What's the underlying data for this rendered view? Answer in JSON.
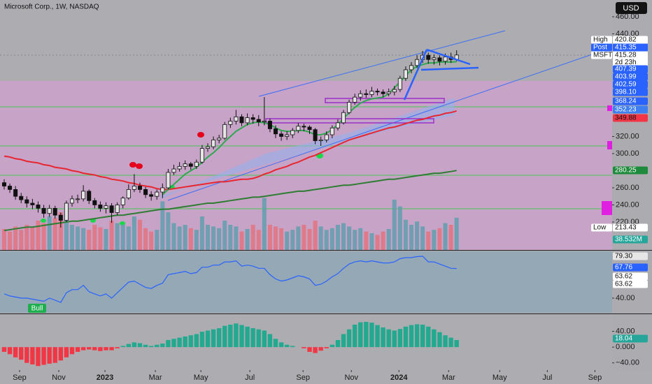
{
  "header": {
    "title": "Microsoft Corp., 1W, NASDAQ",
    "currency": "USD"
  },
  "chart_data": [
    {
      "type": "candlestick",
      "xlim": [
        -0.74,
        107.5
      ],
      "xticks": [
        {
          "value": 2.72,
          "label": "Sep"
        },
        {
          "value": 9.65,
          "label": "Nov"
        },
        {
          "value": 17.82,
          "label": "2023"
        },
        {
          "value": 26.73,
          "label": "Mar"
        },
        {
          "value": 34.78,
          "label": "May"
        },
        {
          "value": 43.44,
          "label": "Jul"
        },
        {
          "value": 52.85,
          "label": "Sep"
        },
        {
          "value": 61.39,
          "label": "Nov"
        },
        {
          "value": 69.8,
          "label": "2024"
        },
        {
          "value": 78.59,
          "label": "Mar"
        },
        {
          "value": 87.62,
          "label": "May"
        },
        {
          "value": 96.04,
          "label": "Jul"
        },
        {
          "value": 104.46,
          "label": "Sep"
        }
      ],
      "ylim": [
        187.3,
        479.6
      ],
      "yticks": [
        {
          "value": 460,
          "label": "460.00"
        },
        {
          "value": 440,
          "label": "440.00"
        },
        {
          "value": 320,
          "label": "320.00"
        },
        {
          "value": 300,
          "label": "300.00"
        },
        {
          "value": 260,
          "label": "260.00"
        },
        {
          "value": 240,
          "label": "240.00"
        },
        {
          "value": 220,
          "label": "220.00"
        }
      ],
      "up_color": "#e6e6e6",
      "down_color": "#111111",
      "open": [
        266,
        262,
        258,
        250,
        246,
        242,
        240,
        236,
        230,
        236,
        228,
        222,
        242,
        247,
        247,
        256,
        245,
        240,
        236,
        239,
        231,
        240,
        248,
        258,
        262,
        258,
        252,
        250,
        255,
        260,
        278,
        282,
        285,
        288,
        285,
        290,
        306,
        308,
        316,
        318,
        334,
        338,
        343,
        336,
        342,
        340,
        337,
        338,
        329,
        323,
        320,
        322,
        327,
        332,
        331,
        328,
        315,
        316,
        322,
        330,
        336,
        348,
        360,
        366,
        370,
        369,
        373,
        372,
        370,
        372,
        375,
        388,
        398,
        403,
        410,
        415,
        410,
        412,
        408,
        413,
        410
      ],
      "high": [
        270,
        265,
        262,
        254,
        250,
        247,
        244,
        240,
        240,
        239,
        231,
        245,
        251,
        252,
        263,
        258,
        248,
        244,
        243,
        242,
        243,
        250,
        264,
        276,
        266,
        261,
        256,
        258,
        265,
        282,
        287,
        290,
        292,
        290,
        293,
        310,
        312,
        320,
        322,
        337,
        342,
        351,
        346,
        347,
        346,
        345,
        366,
        341,
        333,
        326,
        326,
        330,
        336,
        335,
        333,
        330,
        320,
        326,
        333,
        340,
        351,
        363,
        370,
        374,
        375,
        378,
        376,
        375,
        376,
        379,
        391,
        402,
        407,
        415,
        420,
        418,
        416,
        415,
        417,
        418,
        420.82
      ],
      "low": [
        258,
        254,
        246,
        242,
        237,
        235,
        231,
        225,
        226,
        224,
        213.43,
        220,
        238,
        242,
        244,
        241,
        236,
        232,
        230,
        219,
        228,
        236,
        246,
        255,
        254,
        248,
        245,
        246,
        248,
        258,
        275,
        279,
        281,
        281,
        282,
        288,
        302,
        305,
        312,
        316,
        330,
        334,
        332,
        333,
        335,
        332,
        333,
        325,
        318,
        315,
        316,
        318,
        324,
        326,
        323,
        311,
        309,
        313,
        318,
        327,
        334,
        346,
        357,
        362,
        365,
        366,
        368,
        366,
        367,
        368,
        372,
        385,
        394,
        400,
        406,
        405,
        404,
        403,
        404,
        406,
        408
      ],
      "close": [
        262,
        258,
        250,
        246,
        242,
        240,
        236,
        230,
        236,
        228,
        222,
        242,
        247,
        247,
        256,
        245,
        240,
        236,
        239,
        231,
        240,
        248,
        258,
        262,
        258,
        252,
        250,
        255,
        260,
        278,
        282,
        285,
        288,
        285,
        290,
        306,
        308,
        316,
        318,
        334,
        338,
        343,
        336,
        342,
        340,
        337,
        338,
        329,
        323,
        320,
        322,
        327,
        332,
        331,
        328,
        315,
        316,
        322,
        330,
        336,
        348,
        360,
        366,
        370,
        369,
        373,
        372,
        370,
        372,
        375,
        388,
        398,
        403,
        410,
        415,
        410,
        412,
        408,
        413,
        410,
        415.28
      ],
      "lines": [
        {
          "color": "#e8262f",
          "values": [
            297,
            296,
            294,
            293,
            291,
            290,
            289,
            287,
            286,
            284,
            283,
            282,
            280,
            279,
            277,
            276,
            275,
            273,
            272,
            270,
            269,
            268,
            266,
            265,
            263,
            262,
            261,
            259,
            258,
            258,
            259,
            260,
            261,
            262,
            263,
            264,
            265,
            266,
            267,
            267,
            268,
            269,
            270,
            270,
            271,
            273,
            276,
            278,
            281,
            283,
            285,
            288,
            290,
            293,
            296,
            298,
            301,
            304,
            307,
            310,
            313,
            316,
            318,
            320,
            322,
            324,
            326,
            328,
            330,
            331,
            333,
            335,
            337,
            339,
            340,
            342,
            344,
            345,
            347,
            348,
            349.88
          ]
        },
        {
          "color": "#2e7d32",
          "values": [
            210,
            211,
            212,
            213,
            214,
            214,
            215,
            216,
            217,
            218,
            219,
            220,
            221,
            221,
            222,
            223,
            224,
            225,
            226,
            227,
            228,
            228,
            229,
            230,
            231,
            232,
            233,
            234,
            235,
            235,
            236,
            237,
            238,
            239,
            240,
            241,
            242,
            242,
            243,
            244,
            245,
            246,
            247,
            248,
            249,
            249,
            250,
            251,
            252,
            253,
            254,
            255,
            256,
            256,
            257,
            258,
            259,
            260,
            261,
            262,
            263,
            263,
            264,
            265,
            266,
            267,
            268,
            269,
            270,
            270,
            271,
            272,
            273,
            274,
            275,
            276,
            277,
            277,
            278,
            279,
            280.25
          ]
        },
        {
          "color": "#2fa84f",
          "values": [
            null,
            null,
            null,
            null,
            null,
            null,
            null,
            null,
            null,
            null,
            null,
            null,
            null,
            null,
            null,
            null,
            null,
            null,
            null,
            null,
            null,
            null,
            null,
            null,
            null,
            null,
            null,
            null,
            252,
            258,
            264,
            270,
            276,
            280,
            284,
            290,
            296,
            301,
            307,
            314,
            320,
            326,
            330,
            334,
            336,
            337,
            336,
            334,
            330,
            327,
            326,
            326,
            327,
            327,
            325,
            322,
            322,
            324,
            328,
            334,
            341,
            348,
            354,
            359,
            362,
            364,
            365,
            366,
            370,
            377,
            384,
            391,
            398,
            402,
            404,
            406,
            406,
            407,
            407,
            407,
            407.39
          ]
        }
      ],
      "volume": {
        "ylim": [
          0,
          100
        ],
        "up_color": "#5f9fab",
        "down_color": "#e2737e",
        "values": [
          25,
          22,
          28,
          24,
          30,
          27,
          35,
          32,
          40,
          38,
          45,
          42,
          30,
          28,
          26,
          24,
          30,
          27,
          25,
          35,
          32,
          30,
          28,
          40,
          36,
          26,
          22,
          24,
          58,
          45,
          32,
          28,
          30,
          26,
          24,
          40,
          30,
          28,
          26,
          35,
          30,
          28,
          22,
          25,
          30,
          24,
          62,
          30,
          28,
          26,
          22,
          24,
          28,
          30,
          25,
          35,
          28,
          24,
          26,
          30,
          32,
          28,
          24,
          26,
          22,
          20,
          18,
          22,
          25,
          60,
          52,
          36,
          30,
          34,
          28,
          22,
          24,
          26,
          32,
          30,
          38.532
        ]
      },
      "tags": [
        {
          "name": "High",
          "value": 420.82,
          "color": "#ffffff"
        },
        {
          "name": "Post",
          "value": 415.35,
          "color": "#2962ff"
        },
        {
          "name": "MSFT",
          "value": 415.28,
          "color": "#ffffff",
          "countdown": "2d 23h"
        },
        {
          "value": 407.39,
          "color": "#2962ff"
        },
        {
          "value": 403.99,
          "color": "#2962ff"
        },
        {
          "value": 402.59,
          "color": "#2962ff"
        },
        {
          "value": 398.1,
          "label": "398.10",
          "color": "#2962ff"
        },
        {
          "value": 368.24,
          "color": "#2962ff"
        },
        {
          "value": 352.23,
          "color": "#3d7ff0"
        },
        {
          "value": 349.88,
          "color": "#f23645"
        },
        {
          "value": 280.25,
          "color": "#1e8a3c"
        },
        {
          "name": "Low",
          "value": 213.43,
          "color": "#ffffff"
        },
        {
          "value": 38.532,
          "label": "38.532M",
          "color": "#26a69a"
        }
      ]
    },
    {
      "type": "line",
      "ylim": [
        24.9,
        83.9
      ],
      "yticks": [
        {
          "value": 40,
          "label": "40.00"
        }
      ],
      "color": "#2962ff",
      "annotation": "Bull",
      "values": [
        44,
        42,
        41,
        40,
        40,
        39,
        38,
        37,
        40,
        38,
        36,
        45,
        48,
        48,
        52,
        46,
        44,
        42,
        44,
        40,
        45,
        50,
        55,
        56,
        53,
        50,
        49,
        52,
        54,
        62,
        63,
        64,
        65,
        63,
        64,
        69,
        69,
        71,
        71,
        74,
        74,
        75,
        70,
        71,
        70,
        68,
        68,
        62,
        58,
        56,
        57,
        59,
        61,
        60,
        58,
        52,
        53,
        56,
        60,
        63,
        68,
        72,
        74,
        75,
        74,
        75,
        74,
        73,
        73,
        74,
        77,
        78,
        78,
        79,
        79.3,
        74,
        74,
        72,
        70,
        68,
        67.76
      ],
      "tags": [
        {
          "value": 79.3,
          "label": "79.30",
          "color": "#e6e6e6"
        },
        {
          "value": 67.76,
          "color": "#2962ff"
        },
        {
          "value": 63.62,
          "color": "#ffffff"
        },
        {
          "value": 63.62,
          "color": "#ffffff"
        }
      ]
    },
    {
      "type": "bar",
      "ylim": [
        -58.2,
        80
      ],
      "yticks": [
        {
          "value": 40,
          "label": "40.00"
        },
        {
          "value": 0,
          "label": "0.000"
        },
        {
          "value": -40,
          "label": "−40.00"
        }
      ],
      "pos_color": "#22a98f",
      "neg_color": "#f23645",
      "values": [
        -12,
        -18,
        -26,
        -32,
        -40,
        -44,
        -48,
        -45,
        -42,
        -40,
        -34,
        -26,
        -18,
        -12,
        -8,
        -6,
        -8,
        -10,
        -8,
        -8,
        -3,
        3,
        8,
        12,
        10,
        6,
        3,
        6,
        9,
        18,
        21,
        24,
        27,
        30,
        33,
        39,
        42,
        45,
        48,
        54,
        57,
        60,
        56,
        52,
        48,
        45,
        42,
        33,
        21,
        12,
        6,
        3,
        0,
        -3,
        -12,
        -15,
        -9,
        -3,
        6,
        18,
        33,
        45,
        57,
        63,
        64,
        62,
        56,
        50,
        45,
        42,
        46,
        52,
        56,
        58,
        57,
        52,
        45,
        38,
        30,
        24,
        18.04
      ],
      "tags": [
        {
          "value": 18.04,
          "color": "#26a69a"
        }
      ]
    }
  ]
}
